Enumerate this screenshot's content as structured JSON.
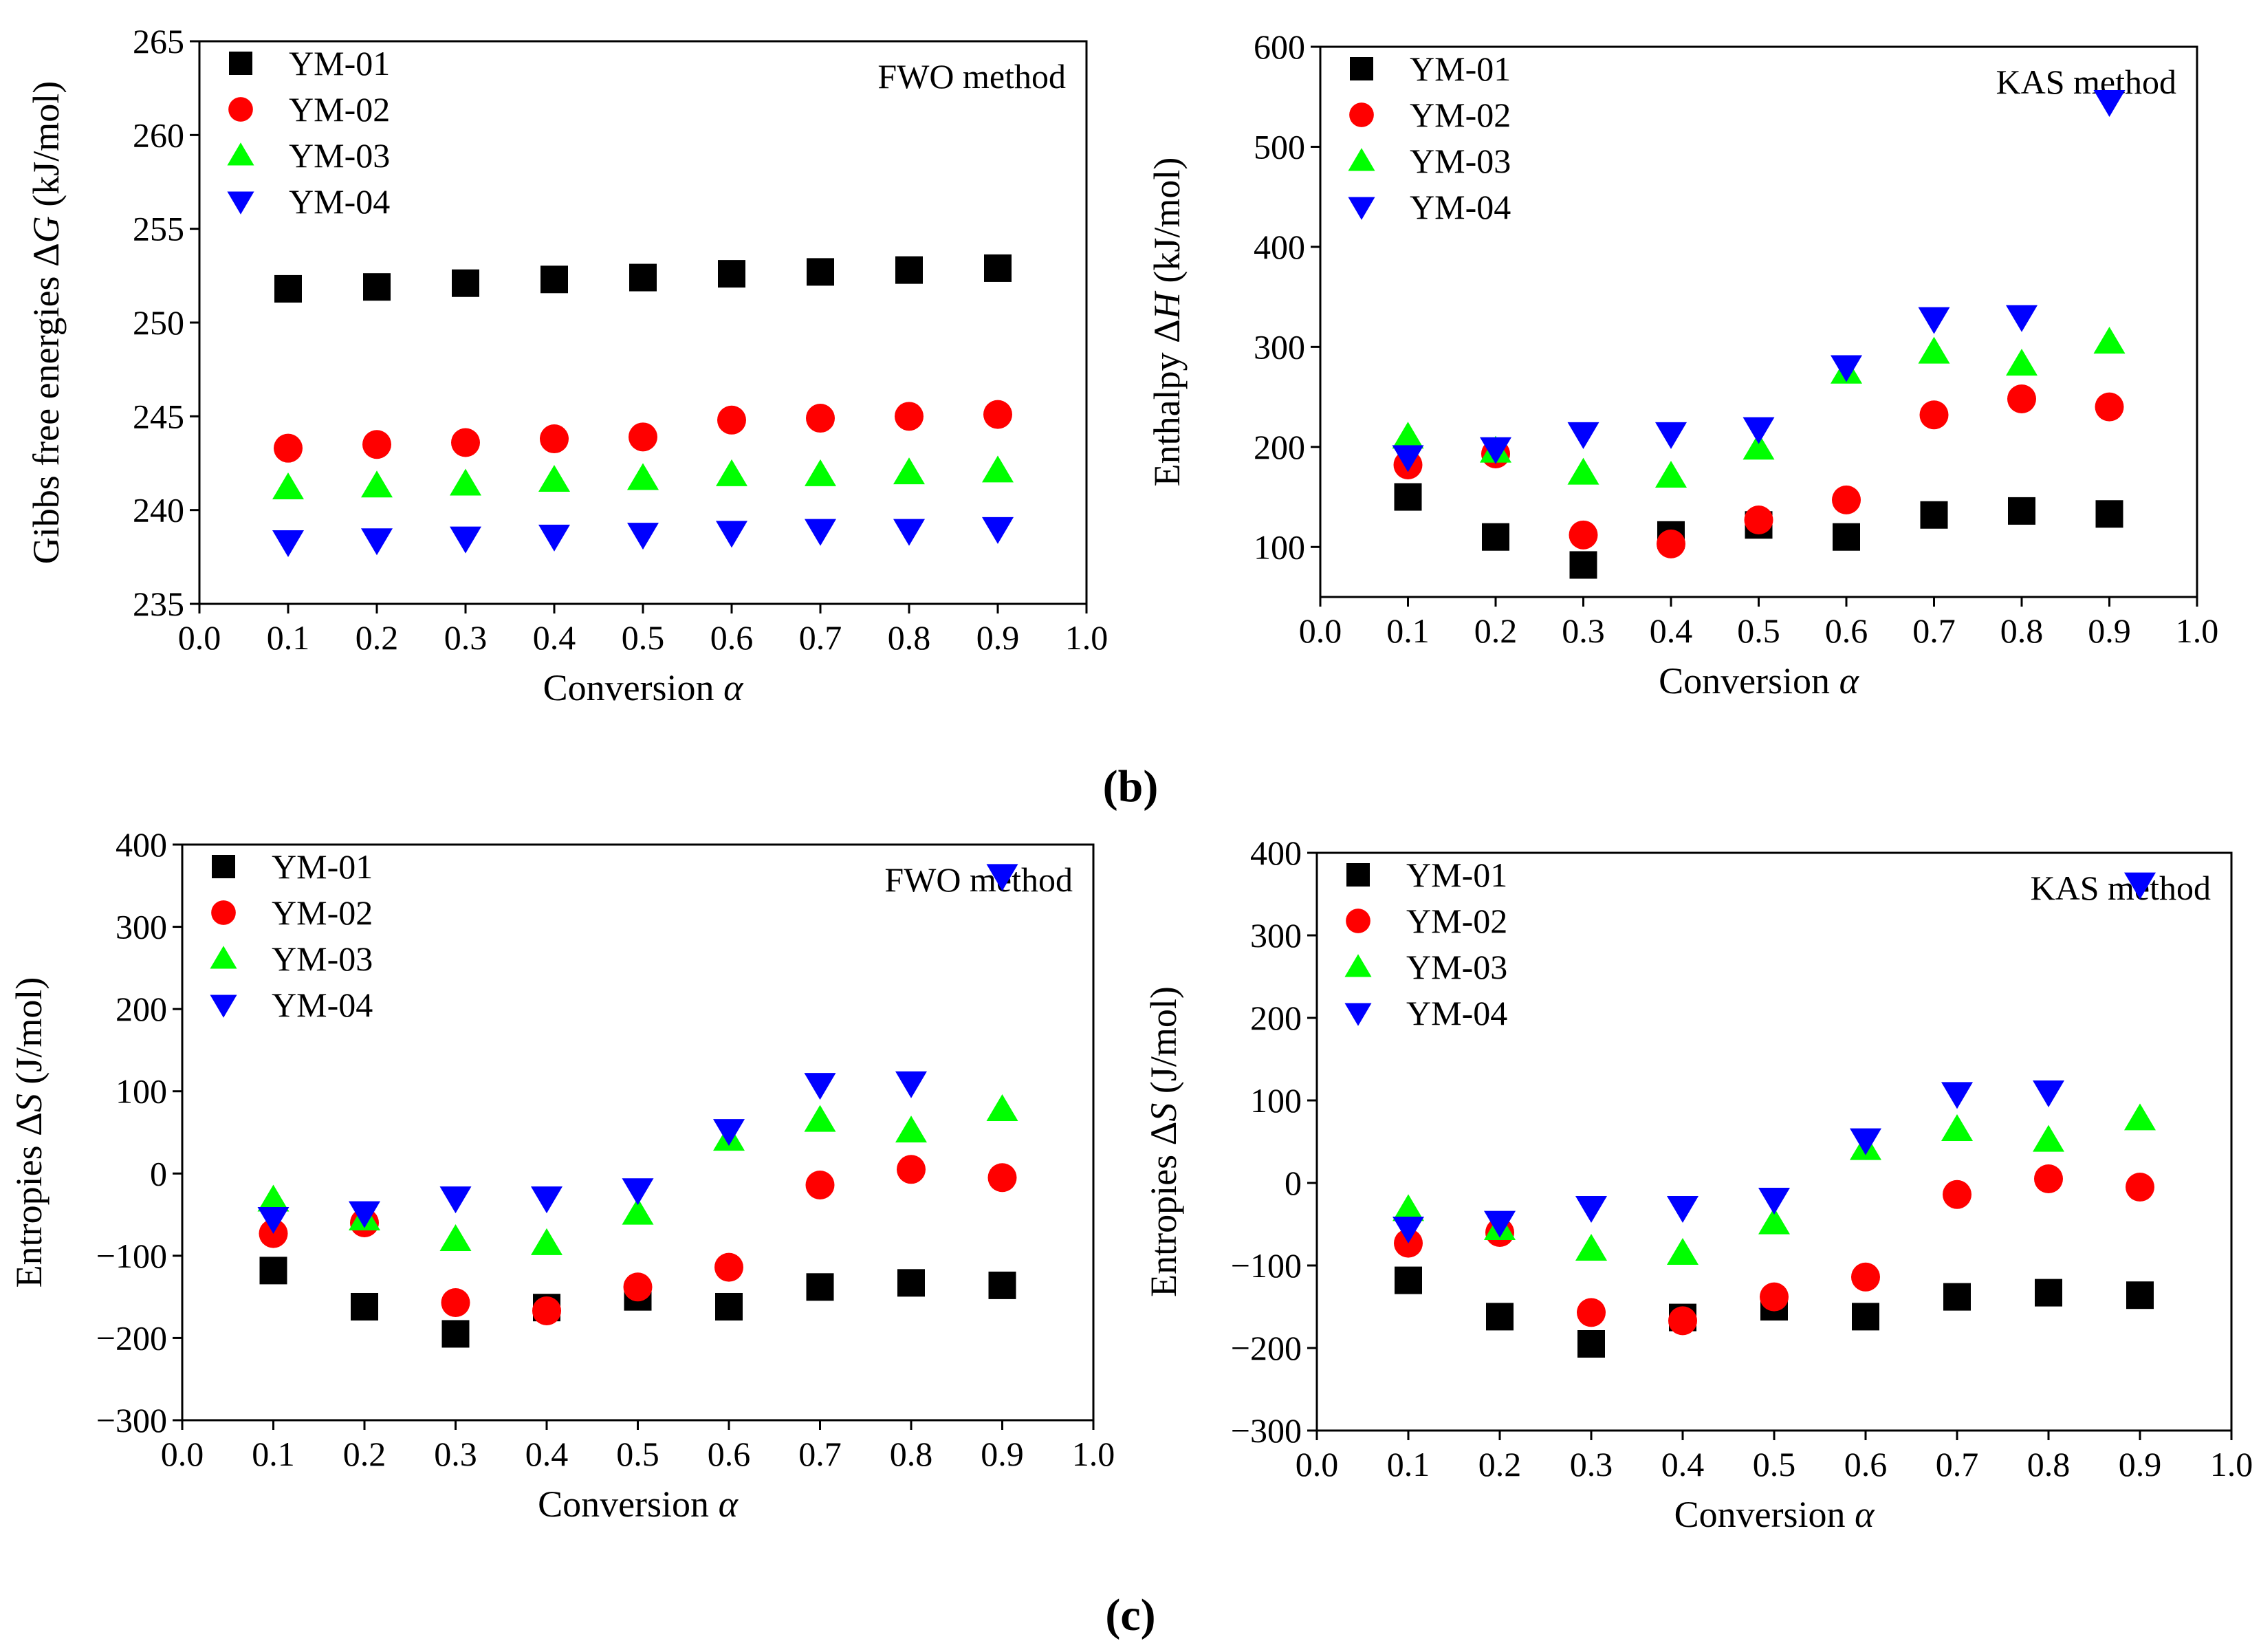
{
  "panel_labels": {
    "b": "(b)",
    "c": "(c)"
  },
  "colors": {
    "YM-01": "#000000",
    "YM-02": "#ff0000",
    "YM-03": "#00ff00",
    "YM-04": "#0000ff"
  },
  "chart_data": [
    {
      "id": "gibbs-fwo",
      "type": "scatter",
      "title": "",
      "annotation": "FWO method",
      "xlabel": "Conversion α",
      "ylabel": "Gibbs free energies ΔG (kJ/mol)",
      "xlim": [
        0.0,
        1.0
      ],
      "ylim": [
        235,
        265
      ],
      "xticks": [
        0.0,
        0.1,
        0.2,
        0.3,
        0.4,
        0.5,
        0.6,
        0.7,
        0.8,
        0.9,
        1.0
      ],
      "xtick_labels": [
        "0.0",
        "0.1",
        "0.2",
        "0.3",
        "0.4",
        "0.5",
        "0.6",
        "0.7",
        "0.8",
        "0.9",
        "1.0"
      ],
      "yticks": [
        235,
        240,
        245,
        250,
        255,
        260,
        265
      ],
      "ytick_labels": [
        "235",
        "240",
        "245",
        "250",
        "255",
        "260",
        "265"
      ],
      "legend_position": "top-left",
      "x": [
        0.1,
        0.2,
        0.3,
        0.4,
        0.5,
        0.6,
        0.7,
        0.8,
        0.9
      ],
      "series": [
        {
          "name": "YM-01",
          "marker": "square",
          "values": [
            251.8,
            251.9,
            252.1,
            252.3,
            252.4,
            252.6,
            252.7,
            252.8,
            252.9
          ]
        },
        {
          "name": "YM-02",
          "marker": "circle",
          "values": [
            243.3,
            243.5,
            243.6,
            243.8,
            243.9,
            244.8,
            244.9,
            245.0,
            245.1
          ]
        },
        {
          "name": "YM-03",
          "marker": "triangle-up",
          "values": [
            241.2,
            241.3,
            241.4,
            241.6,
            241.7,
            241.9,
            241.9,
            242.0,
            242.1
          ]
        },
        {
          "name": "YM-04",
          "marker": "triangle-down",
          "values": [
            238.3,
            238.4,
            238.5,
            238.6,
            238.7,
            238.8,
            238.9,
            238.9,
            239.0
          ]
        }
      ]
    },
    {
      "id": "enthalpy-kas",
      "type": "scatter",
      "title": "",
      "annotation": "KAS method",
      "xlabel": "Conversion α",
      "ylabel": "Enthalpy ΔH (kJ/mol)",
      "xlim": [
        0.0,
        1.0
      ],
      "ylim": [
        50,
        600
      ],
      "xticks": [
        0.0,
        0.1,
        0.2,
        0.3,
        0.4,
        0.5,
        0.6,
        0.7,
        0.8,
        0.9,
        1.0
      ],
      "xtick_labels": [
        "0.0",
        "0.1",
        "0.2",
        "0.3",
        "0.4",
        "0.5",
        "0.6",
        "0.7",
        "0.8",
        "0.9",
        "1.0"
      ],
      "yticks": [
        100,
        200,
        300,
        400,
        500,
        600
      ],
      "ytick_labels": [
        "100",
        "200",
        "300",
        "400",
        "500",
        "600"
      ],
      "legend_position": "top-left",
      "x": [
        0.1,
        0.2,
        0.3,
        0.4,
        0.5,
        0.6,
        0.7,
        0.8,
        0.9
      ],
      "series": [
        {
          "name": "YM-01",
          "marker": "square",
          "values": [
            150,
            110,
            82,
            112,
            122,
            110,
            132,
            136,
            133
          ]
        },
        {
          "name": "YM-02",
          "marker": "circle",
          "values": [
            182,
            193,
            112,
            103,
            127,
            147,
            232,
            248,
            240
          ]
        },
        {
          "name": "YM-03",
          "marker": "triangle-up",
          "values": [
            210,
            196,
            174,
            171,
            199,
            275,
            295,
            283,
            305
          ]
        },
        {
          "name": "YM-04",
          "marker": "triangle-down",
          "values": [
            190,
            198,
            213,
            213,
            218,
            280,
            328,
            330,
            545
          ]
        }
      ]
    },
    {
      "id": "entropy-fwo",
      "type": "scatter",
      "title": "",
      "annotation": "FWO method",
      "xlabel": "Conversion α",
      "ylabel": "Entropies ΔS (J/mol)",
      "xlim": [
        0.0,
        1.0
      ],
      "ylim": [
        -300,
        400
      ],
      "xticks": [
        0.0,
        0.1,
        0.2,
        0.3,
        0.4,
        0.5,
        0.6,
        0.7,
        0.8,
        0.9,
        1.0
      ],
      "xtick_labels": [
        "0.0",
        "0.1",
        "0.2",
        "0.3",
        "0.4",
        "0.5",
        "0.6",
        "0.7",
        "0.8",
        "0.9",
        "1.0"
      ],
      "yticks": [
        -300,
        -200,
        -100,
        0,
        100,
        200,
        300,
        400
      ],
      "ytick_labels": [
        "−300",
        "−200",
        "−100",
        "0",
        "100",
        "200",
        "300",
        "400"
      ],
      "legend_position": "top-left",
      "x": [
        0.1,
        0.2,
        0.3,
        0.4,
        0.5,
        0.6,
        0.7,
        0.8,
        0.9
      ],
      "series": [
        {
          "name": "YM-01",
          "marker": "square",
          "values": [
            -118,
            -162,
            -195,
            -163,
            -150,
            -162,
            -138,
            -133,
            -136
          ]
        },
        {
          "name": "YM-02",
          "marker": "circle",
          "values": [
            -73,
            -60,
            -157,
            -167,
            -138,
            -114,
            -14,
            5,
            -5
          ]
        },
        {
          "name": "YM-03",
          "marker": "triangle-up",
          "values": [
            -32,
            -55,
            -80,
            -85,
            -48,
            42,
            65,
            52,
            78
          ]
        },
        {
          "name": "YM-04",
          "marker": "triangle-down",
          "values": [
            -55,
            -48,
            -30,
            -30,
            -20,
            52,
            108,
            110,
            362
          ]
        }
      ]
    },
    {
      "id": "entropy-kas",
      "type": "scatter",
      "title": "",
      "annotation": "KAS method",
      "xlabel": "Conversion α",
      "ylabel": "Entropies ΔS (J/mol)",
      "xlim": [
        0.0,
        1.0
      ],
      "ylim": [
        -300,
        400
      ],
      "xticks": [
        0.0,
        0.1,
        0.2,
        0.3,
        0.4,
        0.5,
        0.6,
        0.7,
        0.8,
        0.9,
        1.0
      ],
      "xtick_labels": [
        "0.0",
        "0.1",
        "0.2",
        "0.3",
        "0.4",
        "0.5",
        "0.6",
        "0.7",
        "0.8",
        "0.9",
        "1.0"
      ],
      "yticks": [
        -300,
        -200,
        -100,
        0,
        100,
        200,
        300,
        400
      ],
      "ytick_labels": [
        "−300",
        "−200",
        "−100",
        "0",
        "100",
        "200",
        "300",
        "400"
      ],
      "legend_position": "top-left",
      "x": [
        0.1,
        0.2,
        0.3,
        0.4,
        0.5,
        0.6,
        0.7,
        0.8,
        0.9
      ],
      "series": [
        {
          "name": "YM-01",
          "marker": "square",
          "values": [
            -118,
            -162,
            -195,
            -163,
            -150,
            -162,
            -138,
            -133,
            -136
          ]
        },
        {
          "name": "YM-02",
          "marker": "circle",
          "values": [
            -73,
            -60,
            -157,
            -167,
            -138,
            -114,
            -14,
            5,
            -5
          ]
        },
        {
          "name": "YM-03",
          "marker": "triangle-up",
          "values": [
            -32,
            -55,
            -80,
            -85,
            -48,
            42,
            65,
            52,
            78
          ]
        },
        {
          "name": "YM-04",
          "marker": "triangle-down",
          "values": [
            -55,
            -48,
            -30,
            -30,
            -20,
            52,
            108,
            110,
            362
          ]
        }
      ]
    }
  ]
}
